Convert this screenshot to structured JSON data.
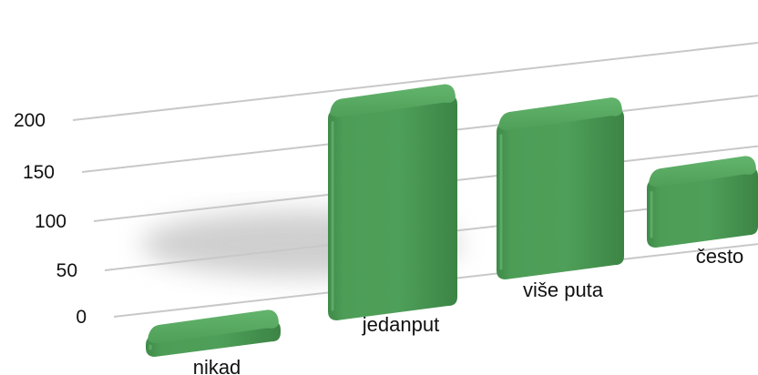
{
  "chart_data": {
    "type": "bar",
    "title": "",
    "xlabel": "",
    "ylabel": "",
    "categories": [
      "nikad",
      "jedanput",
      "više puta",
      "često"
    ],
    "values": [
      12,
      205,
      150,
      60
    ],
    "ylim": [
      0,
      200
    ],
    "yticks": [
      0,
      50,
      100,
      150,
      200
    ],
    "grid": true,
    "legend": "none",
    "bar_color": "#4a9a55",
    "bar_top_color": "#5aab63",
    "gridline_color": "#c8c8c8"
  }
}
